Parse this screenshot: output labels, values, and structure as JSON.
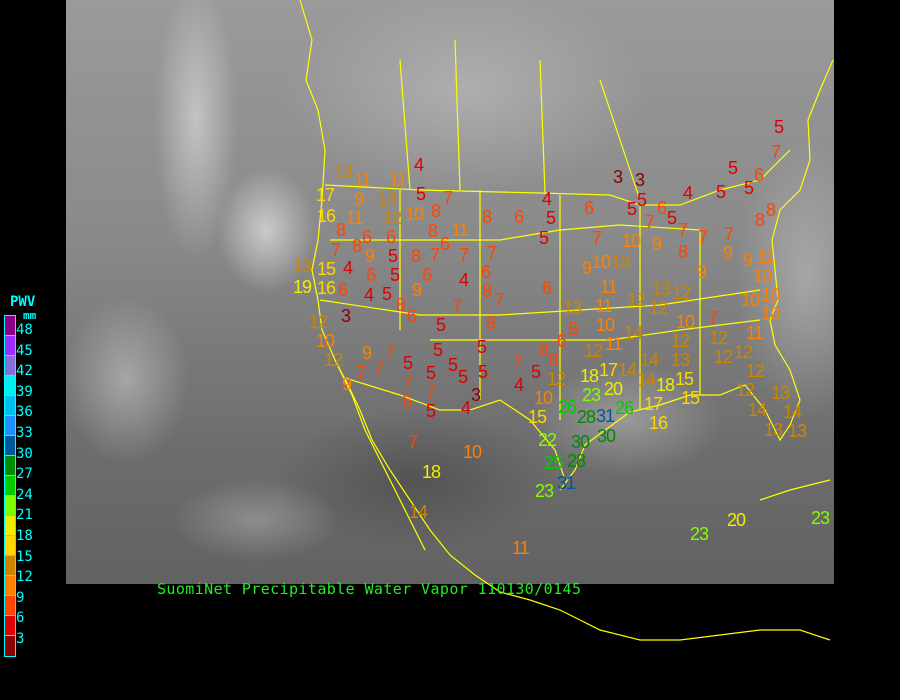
{
  "caption": "SuomiNet Precipitable Water Vapor 110130/0145",
  "legend": {
    "title": "PWV",
    "unit": "mm",
    "ticks": [
      "48",
      "45",
      "42",
      "39",
      "36",
      "33",
      "30",
      "27",
      "24",
      "21",
      "18",
      "15",
      "12",
      "9",
      "6",
      "3"
    ],
    "colors": [
      "#8b008b",
      "#9b30ff",
      "#8470d8",
      "#00eeee",
      "#00bfee",
      "#1e90ff",
      "#00589a",
      "#008b00",
      "#00cd00",
      "#7fff00",
      "#eeee00",
      "#ffd700",
      "#cd8500",
      "#ff8000",
      "#ff4500",
      "#dd0000",
      "#8b0000"
    ]
  },
  "map": {
    "border_color": "#ffff00"
  },
  "stations": [
    4,
    13,
    11,
    11,
    5,
    7,
    17,
    9,
    14,
    12,
    10,
    8,
    8,
    6,
    16,
    11,
    8,
    6,
    6,
    8,
    11,
    6,
    8,
    9,
    5,
    8,
    7,
    7,
    7,
    7,
    13,
    15,
    4,
    6,
    5,
    6,
    4,
    6,
    8,
    19,
    16,
    6,
    4,
    5,
    9,
    8,
    6,
    7,
    7,
    3,
    5,
    8,
    12,
    10,
    5,
    5,
    9,
    7,
    12,
    7,
    7,
    5,
    5,
    5,
    5,
    5,
    7,
    5,
    8,
    12,
    9,
    7,
    7,
    4,
    3,
    10,
    15,
    6,
    5,
    4,
    7,
    10,
    18,
    14,
    22,
    25,
    23,
    31,
    13,
    10,
    8,
    6,
    8,
    11,
    14,
    12,
    18,
    17,
    14,
    20,
    23,
    26,
    28,
    31,
    30,
    26,
    14,
    13,
    15,
    14,
    18,
    15,
    17,
    16,
    12,
    10,
    7,
    12,
    12,
    11,
    12,
    12,
    12,
    14,
    13,
    14,
    13,
    13,
    30,
    28,
    5,
    7,
    5,
    6,
    5,
    3,
    3,
    4,
    5,
    4,
    5,
    6,
    5,
    5,
    6,
    5,
    7,
    7,
    8,
    8,
    5,
    7,
    10,
    9,
    8,
    7,
    7,
    9,
    9,
    11,
    10,
    10,
    13,
    9,
    6,
    9,
    11,
    11,
    12,
    13,
    12,
    12,
    10,
    10,
    10,
    23,
    20,
    23,
    11
  ]
}
